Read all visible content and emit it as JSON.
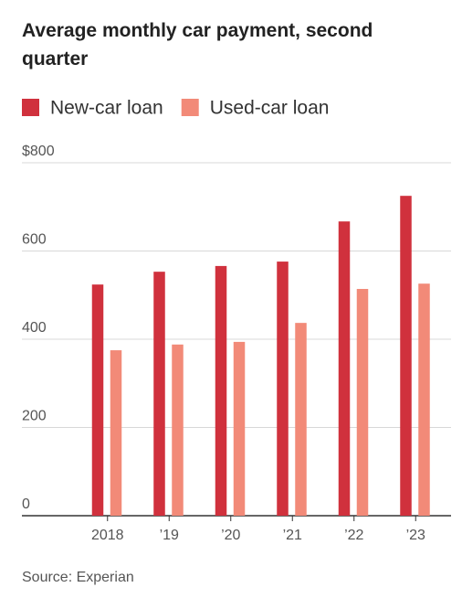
{
  "chart_data": {
    "type": "bar",
    "title": "Average monthly car payment, second quarter",
    "categories": [
      "2018",
      "’19",
      "’20",
      "’21",
      "’22",
      "’23"
    ],
    "series": [
      {
        "name": "New-car loan",
        "color": "#d0313d",
        "values": [
          524,
          553,
          566,
          576,
          667,
          725
        ]
      },
      {
        "name": "Used-car loan",
        "color": "#f28a78",
        "values": [
          375,
          388,
          394,
          437,
          514,
          526
        ]
      }
    ],
    "ylim": [
      0,
      800
    ],
    "yticks": [
      0,
      200,
      400,
      600,
      {
        "value": 800,
        "label": "$800"
      }
    ],
    "grid": true,
    "source": "Source: Experian"
  }
}
